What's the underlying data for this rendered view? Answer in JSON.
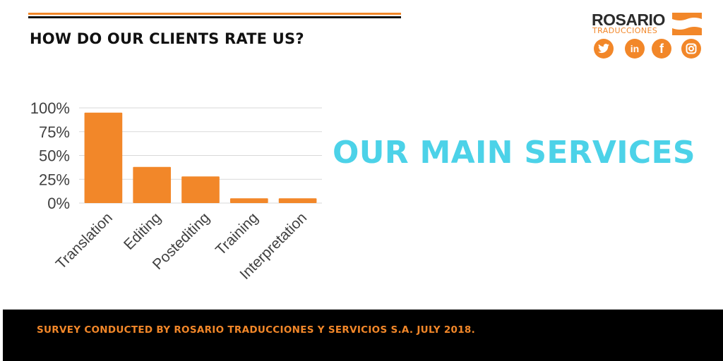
{
  "colors": {
    "accent": "#f28729",
    "dark": "#111111",
    "services": "#4cd2e8",
    "footer_bg": "#000000",
    "grid": "#d9d9d9",
    "axis_text": "#404040"
  },
  "header": {
    "title": "HOW DO OUR CLIENTS RATE US?"
  },
  "brand": {
    "name": "ROSARIO",
    "tagline": "TRADUCCIONES",
    "social": [
      {
        "icon": "twitter-icon"
      },
      {
        "icon": "linkedin-icon",
        "glyph": "in"
      },
      {
        "icon": "facebook-icon",
        "glyph": "f"
      },
      {
        "icon": "instagram-icon"
      }
    ]
  },
  "services_heading": "OUR MAIN SERVICES",
  "footer": {
    "text": "SURVEY CONDUCTED BY ROSARIO TRADUCCIONES Y SERVICIOS S.A. JULY 2018."
  },
  "chart_data": {
    "type": "bar",
    "categories": [
      "Translation",
      "Editing",
      "Postediting",
      "Training",
      "Interpretation"
    ],
    "values": [
      95,
      38,
      28,
      5,
      5
    ],
    "ylim": [
      0,
      100
    ],
    "yticks": [
      "0%",
      "25%",
      "50%",
      "75%",
      "100%"
    ],
    "grid": true,
    "xlabel": "",
    "ylabel": ""
  }
}
